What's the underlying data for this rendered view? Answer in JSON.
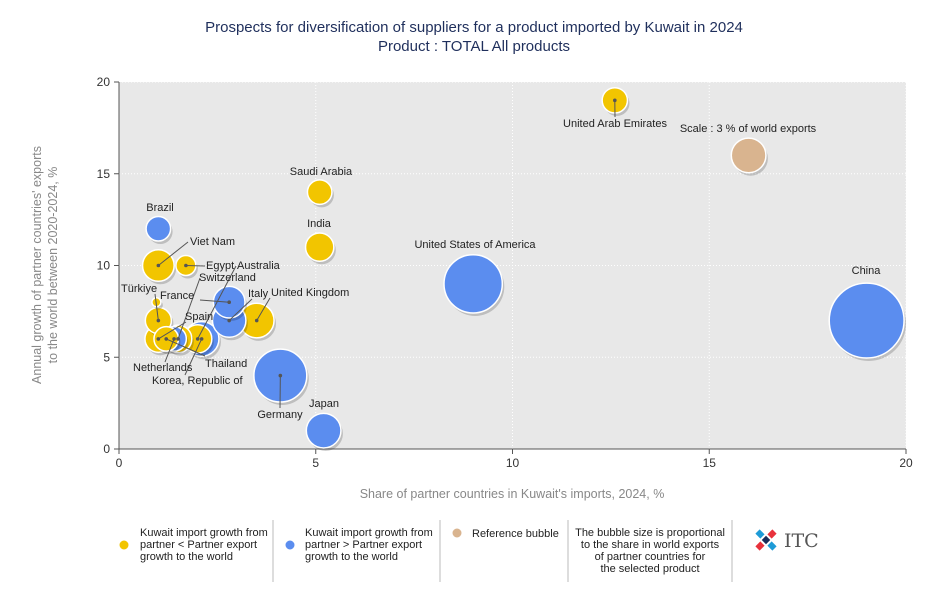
{
  "chart_data": {
    "type": "scatter",
    "title": "Prospects for diversification of suppliers for a product imported by Kuwait in 2024",
    "subtitle": "Product : TOTAL All products",
    "xlabel": "Share of partner countries in Kuwait's imports, 2024, %",
    "ylabel_line1": "Annual growth of partner countries' exports",
    "ylabel_line2": "to the world between 2020-2024, %",
    "xlim": [
      0,
      20
    ],
    "ylim": [
      0,
      20
    ],
    "x_ticks": [
      "0",
      "5",
      "10",
      "15",
      "20"
    ],
    "y_ticks": [
      "0",
      "5",
      "10",
      "15",
      "20"
    ],
    "grid": true,
    "colors": {
      "yellow": "#f2c500",
      "blue": "#5b8def",
      "reference": "#d9b48f",
      "plot_bg": "#e8e8e8",
      "title": "#1f2f5c"
    },
    "points": [
      {
        "name": "China",
        "x": 19.0,
        "y": 7.0,
        "share_world_exports": 14.0,
        "group": "blue"
      },
      {
        "name": "United States of America",
        "x": 9.0,
        "y": 9.0,
        "share_world_exports": 8.5,
        "group": "blue"
      },
      {
        "name": "Germany",
        "x": 4.1,
        "y": 4.0,
        "share_world_exports": 7.0,
        "group": "blue"
      },
      {
        "name": "Japan",
        "x": 5.2,
        "y": 1.0,
        "share_world_exports": 3.0,
        "group": "blue"
      },
      {
        "name": "Italy",
        "x": 2.8,
        "y": 7.0,
        "share_world_exports": 2.8,
        "group": "blue"
      },
      {
        "name": "Korea, Republic of",
        "x": 2.1,
        "y": 6.0,
        "share_world_exports": 3.0,
        "group": "blue"
      },
      {
        "name": "France",
        "x": 2.8,
        "y": 8.0,
        "share_world_exports": 2.5,
        "group": "blue"
      },
      {
        "name": "Netherlands",
        "x": 1.4,
        "y": 6.0,
        "share_world_exports": 1.5,
        "group": "blue"
      },
      {
        "name": "Brazil",
        "x": 1.0,
        "y": 12.0,
        "share_world_exports": 1.5,
        "group": "blue"
      },
      {
        "name": "United Arab Emirates",
        "x": 12.6,
        "y": 19.0,
        "share_world_exports": 1.6,
        "group": "yellow"
      },
      {
        "name": "Saudi Arabia",
        "x": 5.1,
        "y": 14.0,
        "share_world_exports": 1.5,
        "group": "yellow"
      },
      {
        "name": "India",
        "x": 5.1,
        "y": 11.0,
        "share_world_exports": 2.0,
        "group": "yellow"
      },
      {
        "name": "United Kingdom",
        "x": 3.5,
        "y": 7.0,
        "share_world_exports": 3.0,
        "group": "yellow"
      },
      {
        "name": "Viet Nam",
        "x": 1.0,
        "y": 10.0,
        "share_world_exports": 2.5,
        "group": "yellow"
      },
      {
        "name": "Egypt",
        "x": 1.7,
        "y": 10.0,
        "share_world_exports": 1.0,
        "group": "yellow"
      },
      {
        "name": "Türkiye",
        "x": 1.0,
        "y": 7.0,
        "share_world_exports": 1.7,
        "group": "yellow"
      },
      {
        "name": "Australia",
        "x": 2.0,
        "y": 6.0,
        "share_world_exports": 2.0,
        "group": "yellow"
      },
      {
        "name": "Switzerland",
        "x": 1.5,
        "y": 6.0,
        "share_world_exports": 1.9,
        "group": "yellow"
      },
      {
        "name": "Spain",
        "x": 1.0,
        "y": 6.0,
        "share_world_exports": 1.8,
        "group": "yellow"
      },
      {
        "name": "Thailand",
        "x": 1.2,
        "y": 6.0,
        "share_world_exports": 1.5,
        "group": "yellow"
      },
      {
        "name": "",
        "x": 0.95,
        "y": 8.0,
        "share_world_exports": 0.2,
        "group": "yellow"
      }
    ],
    "reference_bubble": {
      "label": "Scale : 3 % of world exports",
      "x": 16.0,
      "y": 16.0,
      "share_world_exports": 3.0
    }
  },
  "legend": {
    "yellow_line1": "Kuwait import growth from",
    "yellow_line2": "partner < Partner export",
    "yellow_line3": "growth to the world",
    "blue_line1": "Kuwait import growth from",
    "blue_line2": "partner > Partner export",
    "blue_line3": "growth to the world",
    "reference": "Reference bubble",
    "note_line1": "The bubble size is proportional",
    "note_line2": "to the share in world exports",
    "note_line3": "of partner countries for",
    "note_line4": "the selected product",
    "logo_text": "ITC"
  }
}
